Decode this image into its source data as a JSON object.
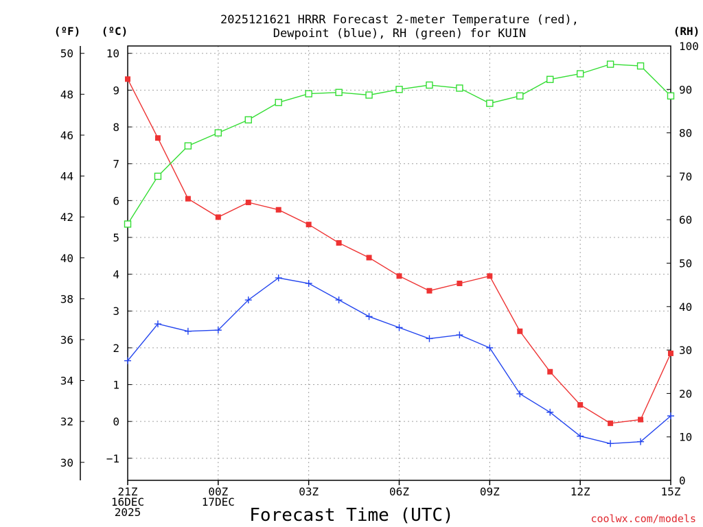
{
  "chart_data": {
    "type": "line",
    "title": [
      "2025121621 HRRR Forecast 2-meter Temperature (red),",
      "Dewpoint (blue), RH (green) for KUIN"
    ],
    "xlabel": "Forecast Time (UTC)",
    "credit": "coolwx.com/models",
    "units": {
      "fahrenheit": "(ºF)",
      "celsius": "(ºC)",
      "rh": "(RH)"
    },
    "x_ticks": [
      {
        "hour": 0,
        "lines": [
          "21Z",
          "16DEC",
          "2025"
        ]
      },
      {
        "hour": 3,
        "lines": [
          "00Z",
          "17DEC"
        ]
      },
      {
        "hour": 6,
        "lines": [
          "03Z"
        ]
      },
      {
        "hour": 9,
        "lines": [
          "06Z"
        ]
      },
      {
        "hour": 12,
        "lines": [
          "09Z"
        ]
      },
      {
        "hour": 15,
        "lines": [
          "12Z"
        ]
      },
      {
        "hour": 18,
        "lines": [
          "15Z"
        ]
      }
    ],
    "xlim": [
      0,
      18
    ],
    "celsius_axis": {
      "ylim": [
        -1.6,
        10.2
      ],
      "ticks": [
        -1,
        0,
        1,
        2,
        3,
        4,
        5,
        6,
        7,
        8,
        9,
        10
      ]
    },
    "fahrenheit_axis": {
      "ticks": [
        30,
        32,
        34,
        36,
        38,
        40,
        42,
        44,
        46,
        48,
        50
      ]
    },
    "rh_axis": {
      "ylim": [
        0,
        100
      ],
      "ticks": [
        0,
        10,
        20,
        30,
        40,
        50,
        60,
        70,
        80,
        90,
        100
      ]
    },
    "grid": true,
    "series": [
      {
        "name": "2-meter Temperature",
        "color": "#ee3333",
        "marker": "filled-square",
        "axis": "celsius",
        "hours": [
          0,
          1,
          2,
          3,
          4,
          5,
          6,
          7,
          8,
          9,
          10,
          11,
          12,
          13,
          14,
          15,
          16,
          17,
          18
        ],
        "values": [
          9.3,
          7.7,
          6.05,
          5.55,
          5.95,
          5.75,
          5.35,
          4.85,
          4.45,
          3.95,
          3.55,
          3.75,
          3.95,
          2.45,
          1.35,
          0.45,
          -0.05,
          0.05,
          1.85
        ]
      },
      {
        "name": "Dewpoint",
        "color": "#2244ee",
        "marker": "plus",
        "axis": "celsius",
        "hours": [
          0,
          1,
          2,
          3,
          4,
          5,
          6,
          7,
          8,
          9,
          10,
          11,
          12,
          13,
          14,
          15,
          16,
          17,
          18
        ],
        "values": [
          1.65,
          2.65,
          2.45,
          2.48,
          3.3,
          3.9,
          3.75,
          3.3,
          2.85,
          2.55,
          2.25,
          2.35,
          2.0,
          0.75,
          0.25,
          -0.4,
          -0.6,
          -0.55,
          0.15
        ]
      },
      {
        "name": "RH",
        "color": "#33dd33",
        "marker": "open-square",
        "axis": "rh",
        "hours": [
          0,
          1,
          2,
          3,
          4,
          5,
          6,
          7,
          8,
          9,
          10,
          11,
          12,
          13,
          14,
          15,
          16,
          17,
          18
        ],
        "values": [
          59,
          70,
          77,
          80,
          83,
          87,
          89,
          89.3,
          88.7,
          90,
          91,
          90.3,
          86.8,
          88.5,
          92.3,
          93.6,
          95.8,
          95.4,
          88.5
        ]
      }
    ]
  }
}
